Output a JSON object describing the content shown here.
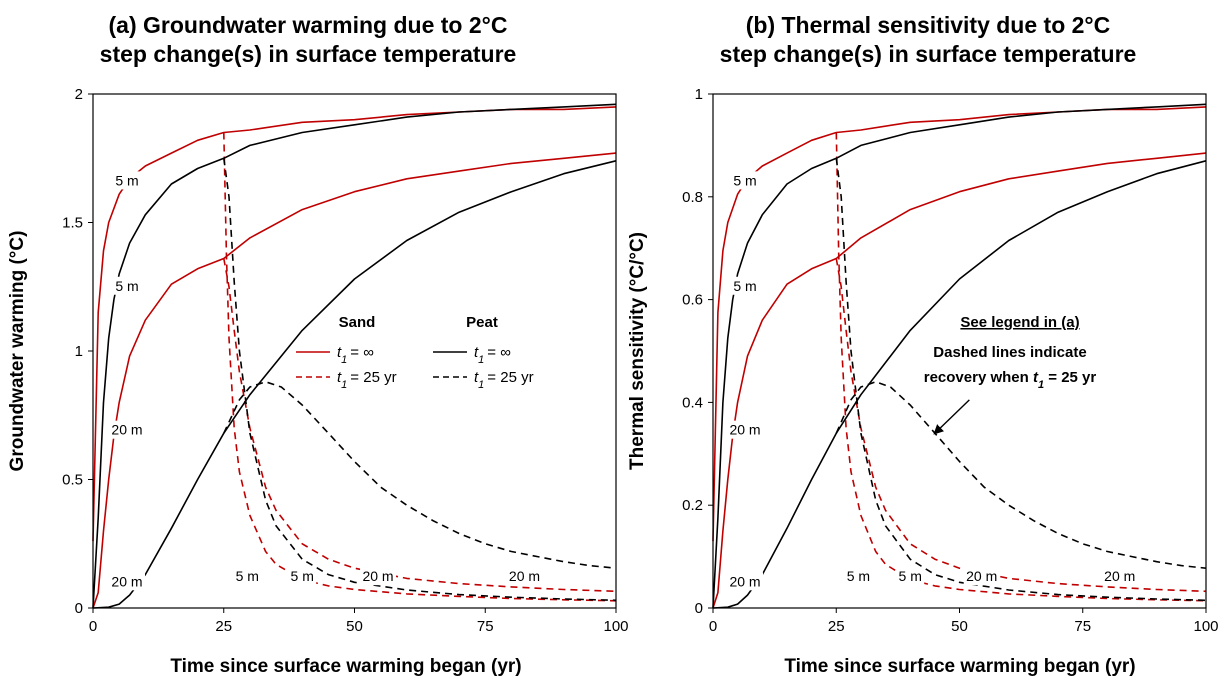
{
  "chart_data": [
    {
      "type": "line",
      "title_line1": "(a) Groundwater warming due to 2°C",
      "title_line2": "step change(s) in surface temperature",
      "xlabel": "Time since surface warming began (yr)",
      "ylabel": "Groundwater warming (°C)",
      "xlim": [
        0,
        100
      ],
      "ylim": [
        0,
        2
      ],
      "xticks": [
        "0",
        "25",
        "50",
        "75",
        "100"
      ],
      "yticks": [
        "0",
        "0.5",
        "1",
        "1.5",
        "2"
      ],
      "grid": false,
      "step_change": 2,
      "recovery_time": 25,
      "curve_labels": [
        {
          "text": "5 m",
          "x": 6.5,
          "y": 1.66
        },
        {
          "text": "5 m",
          "x": 6.5,
          "y": 1.25
        },
        {
          "text": "20 m",
          "x": 6.5,
          "y": 0.69
        },
        {
          "text": "20 m",
          "x": 6.5,
          "y": 0.1
        },
        {
          "text": "5 m",
          "x": 29.5,
          "y": 0.12
        },
        {
          "text": "5 m",
          "x": 40,
          "y": 0.12
        },
        {
          "text": "20 m",
          "x": 54.5,
          "y": 0.12
        },
        {
          "text": "20 m",
          "x": 82.5,
          "y": 0.12
        }
      ],
      "legend": {
        "placement": "center-right",
        "sand_header": "Sand",
        "peat_header": "Peat",
        "solid_label": "= ∞",
        "dashed_label": "= 25 yr",
        "t_symbol": "t",
        "t_subscript": "1"
      },
      "series": [
        {
          "material": "sand",
          "depth": "5 m",
          "recovery": "∞",
          "color": "#c00000",
          "dash": false,
          "x": [
            0,
            1,
            2,
            3,
            5,
            7,
            10,
            15,
            20,
            25,
            30,
            40,
            50,
            60,
            70,
            80,
            90,
            100
          ],
          "y": [
            0.26,
            1.15,
            1.39,
            1.5,
            1.61,
            1.67,
            1.72,
            1.77,
            1.82,
            1.85,
            1.86,
            1.89,
            1.9,
            1.92,
            1.93,
            1.94,
            1.94,
            1.95
          ]
        },
        {
          "material": "sand",
          "depth": "5 m",
          "recovery": "25 yr",
          "color": "#c00000",
          "dash": true,
          "x": [
            25,
            25.5,
            26,
            27,
            28,
            30,
            33,
            35,
            40,
            45,
            50,
            60,
            70,
            80,
            90,
            100
          ],
          "y": [
            1.85,
            1.38,
            1.05,
            0.7,
            0.53,
            0.36,
            0.22,
            0.17,
            0.11,
            0.086,
            0.072,
            0.055,
            0.045,
            0.037,
            0.032,
            0.028
          ]
        },
        {
          "material": "sand",
          "depth": "20 m",
          "recovery": "∞",
          "color": "#c00000",
          "dash": false,
          "x": [
            0,
            1,
            2,
            3,
            4,
            5,
            7,
            10,
            15,
            20,
            25,
            30,
            40,
            50,
            60,
            70,
            80,
            90,
            100
          ],
          "y": [
            0,
            0.06,
            0.3,
            0.5,
            0.67,
            0.8,
            0.98,
            1.12,
            1.26,
            1.32,
            1.36,
            1.44,
            1.55,
            1.62,
            1.67,
            1.7,
            1.73,
            1.75,
            1.77
          ]
        },
        {
          "material": "sand",
          "depth": "20 m",
          "recovery": "25 yr",
          "color": "#c00000",
          "dash": true,
          "x": [
            25,
            26,
            27,
            28,
            30,
            33,
            35,
            40,
            45,
            50,
            60,
            70,
            80,
            90,
            100
          ],
          "y": [
            1.36,
            1.25,
            1.08,
            0.92,
            0.7,
            0.47,
            0.38,
            0.25,
            0.19,
            0.155,
            0.115,
            0.095,
            0.082,
            0.072,
            0.065
          ]
        },
        {
          "material": "peat",
          "depth": "5 m",
          "recovery": "∞",
          "color": "#000000",
          "dash": false,
          "x": [
            0,
            1,
            2,
            3,
            4,
            5,
            7,
            10,
            15,
            20,
            25,
            30,
            40,
            50,
            60,
            70,
            80,
            90,
            100
          ],
          "y": [
            0,
            0.35,
            0.8,
            1.05,
            1.2,
            1.3,
            1.42,
            1.53,
            1.65,
            1.71,
            1.75,
            1.8,
            1.85,
            1.88,
            1.91,
            1.93,
            1.94,
            1.95,
            1.96
          ]
        },
        {
          "material": "peat",
          "depth": "5 m",
          "recovery": "25 yr",
          "color": "#000000",
          "dash": true,
          "x": [
            25,
            26,
            27,
            28,
            30,
            33,
            35,
            40,
            45,
            50,
            60,
            70,
            80,
            90,
            100
          ],
          "y": [
            1.75,
            1.6,
            1.27,
            1.0,
            0.68,
            0.42,
            0.32,
            0.19,
            0.13,
            0.1,
            0.07,
            0.052,
            0.042,
            0.035,
            0.03
          ]
        },
        {
          "material": "peat",
          "depth": "20 m",
          "recovery": "∞",
          "color": "#000000",
          "dash": false,
          "x": [
            0,
            3,
            5,
            7,
            10,
            15,
            20,
            25,
            30,
            40,
            50,
            60,
            70,
            80,
            90,
            100
          ],
          "y": [
            0,
            0.003,
            0.015,
            0.05,
            0.13,
            0.31,
            0.5,
            0.68,
            0.83,
            1.08,
            1.28,
            1.43,
            1.54,
            1.62,
            1.69,
            1.74
          ]
        },
        {
          "material": "peat",
          "depth": "20 m",
          "recovery": "25 yr",
          "color": "#000000",
          "dash": true,
          "x": [
            25,
            28,
            30,
            33,
            36,
            40,
            45,
            50,
            55,
            60,
            65,
            70,
            75,
            80,
            85,
            90,
            95,
            100
          ],
          "y": [
            0.68,
            0.81,
            0.86,
            0.88,
            0.86,
            0.79,
            0.68,
            0.57,
            0.47,
            0.4,
            0.34,
            0.29,
            0.25,
            0.22,
            0.2,
            0.18,
            0.165,
            0.155
          ]
        }
      ]
    },
    {
      "type": "line",
      "title_line1": "(b) Thermal sensitivity due to 2°C",
      "title_line2": "step change(s) in surface temperature",
      "xlabel": "Time since surface warming began (yr)",
      "ylabel": "Thermal sensitivity (°C/°C)",
      "xlim": [
        0,
        100
      ],
      "ylim": [
        0,
        1
      ],
      "xticks": [
        "0",
        "25",
        "50",
        "75",
        "100"
      ],
      "yticks": [
        "0",
        "0.2",
        "0.4",
        "0.6",
        "0.8",
        "1"
      ],
      "grid": false,
      "curve_labels": [
        {
          "text": "5 m",
          "x": 6.5,
          "y": 0.83
        },
        {
          "text": "5 m",
          "x": 6.5,
          "y": 0.625
        },
        {
          "text": "20 m",
          "x": 6.5,
          "y": 0.345
        },
        {
          "text": "20 m",
          "x": 6.5,
          "y": 0.05
        },
        {
          "text": "5 m",
          "x": 29.5,
          "y": 0.06
        },
        {
          "text": "5 m",
          "x": 40,
          "y": 0.06
        },
        {
          "text": "20 m",
          "x": 54.5,
          "y": 0.06
        },
        {
          "text": "20 m",
          "x": 82.5,
          "y": 0.06
        }
      ],
      "annotation": {
        "see_legend": "See legend in (a)",
        "line1": "Dashed lines indicate",
        "line2_prefix": "recovery when ",
        "t_symbol": "t",
        "t_subscript": "1",
        "line2_suffix": " = 25 yr",
        "arrow_to": {
          "x": 45,
          "y": 0.34
        },
        "arrow_from": {
          "x": 52,
          "y": 0.405
        }
      },
      "series": [
        {
          "material": "sand",
          "depth": "5 m",
          "recovery": "∞",
          "color": "#c00000",
          "dash": false,
          "x": [
            0,
            1,
            2,
            3,
            5,
            7,
            10,
            15,
            20,
            25,
            30,
            40,
            50,
            60,
            70,
            80,
            90,
            100
          ],
          "y": [
            0.13,
            0.575,
            0.695,
            0.75,
            0.805,
            0.835,
            0.86,
            0.885,
            0.91,
            0.925,
            0.93,
            0.945,
            0.95,
            0.96,
            0.965,
            0.97,
            0.97,
            0.975
          ]
        },
        {
          "material": "sand",
          "depth": "5 m",
          "recovery": "25 yr",
          "color": "#c00000",
          "dash": true,
          "x": [
            25,
            25.5,
            26,
            27,
            28,
            30,
            33,
            35,
            40,
            45,
            50,
            60,
            70,
            80,
            90,
            100
          ],
          "y": [
            0.925,
            0.69,
            0.525,
            0.35,
            0.265,
            0.18,
            0.11,
            0.085,
            0.055,
            0.043,
            0.036,
            0.0275,
            0.0225,
            0.0185,
            0.016,
            0.014
          ]
        },
        {
          "material": "sand",
          "depth": "20 m",
          "recovery": "∞",
          "color": "#c00000",
          "dash": false,
          "x": [
            0,
            1,
            2,
            3,
            4,
            5,
            7,
            10,
            15,
            20,
            25,
            30,
            40,
            50,
            60,
            70,
            80,
            90,
            100
          ],
          "y": [
            0,
            0.03,
            0.15,
            0.25,
            0.335,
            0.4,
            0.49,
            0.56,
            0.63,
            0.66,
            0.68,
            0.72,
            0.775,
            0.81,
            0.835,
            0.85,
            0.865,
            0.875,
            0.885
          ]
        },
        {
          "material": "sand",
          "depth": "20 m",
          "recovery": "25 yr",
          "color": "#c00000",
          "dash": true,
          "x": [
            25,
            26,
            27,
            28,
            30,
            33,
            35,
            40,
            45,
            50,
            60,
            70,
            80,
            90,
            100
          ],
          "y": [
            0.68,
            0.625,
            0.54,
            0.46,
            0.35,
            0.235,
            0.19,
            0.125,
            0.095,
            0.0775,
            0.0575,
            0.0475,
            0.041,
            0.036,
            0.0325
          ]
        },
        {
          "material": "peat",
          "depth": "5 m",
          "recovery": "∞",
          "color": "#000000",
          "dash": false,
          "x": [
            0,
            1,
            2,
            3,
            4,
            5,
            7,
            10,
            15,
            20,
            25,
            30,
            40,
            50,
            60,
            70,
            80,
            90,
            100
          ],
          "y": [
            0,
            0.175,
            0.4,
            0.525,
            0.6,
            0.65,
            0.71,
            0.765,
            0.825,
            0.855,
            0.875,
            0.9,
            0.925,
            0.94,
            0.955,
            0.965,
            0.97,
            0.975,
            0.98
          ]
        },
        {
          "material": "peat",
          "depth": "5 m",
          "recovery": "25 yr",
          "color": "#000000",
          "dash": true,
          "x": [
            25,
            26,
            27,
            28,
            30,
            33,
            35,
            40,
            45,
            50,
            60,
            70,
            80,
            90,
            100
          ],
          "y": [
            0.875,
            0.8,
            0.635,
            0.5,
            0.34,
            0.21,
            0.16,
            0.095,
            0.065,
            0.05,
            0.035,
            0.026,
            0.021,
            0.0175,
            0.015
          ]
        },
        {
          "material": "peat",
          "depth": "20 m",
          "recovery": "∞",
          "color": "#000000",
          "dash": false,
          "x": [
            0,
            3,
            5,
            7,
            10,
            15,
            20,
            25,
            30,
            40,
            50,
            60,
            70,
            80,
            90,
            100
          ],
          "y": [
            0,
            0.0015,
            0.0075,
            0.025,
            0.065,
            0.155,
            0.25,
            0.34,
            0.415,
            0.54,
            0.64,
            0.715,
            0.77,
            0.81,
            0.845,
            0.87
          ]
        },
        {
          "material": "peat",
          "depth": "20 m",
          "recovery": "25 yr",
          "color": "#000000",
          "dash": true,
          "x": [
            25,
            28,
            30,
            33,
            36,
            40,
            45,
            50,
            55,
            60,
            65,
            70,
            75,
            80,
            85,
            90,
            95,
            100
          ],
          "y": [
            0.34,
            0.405,
            0.43,
            0.44,
            0.43,
            0.395,
            0.34,
            0.285,
            0.235,
            0.2,
            0.17,
            0.145,
            0.125,
            0.11,
            0.1,
            0.09,
            0.0825,
            0.0775
          ]
        }
      ]
    }
  ]
}
